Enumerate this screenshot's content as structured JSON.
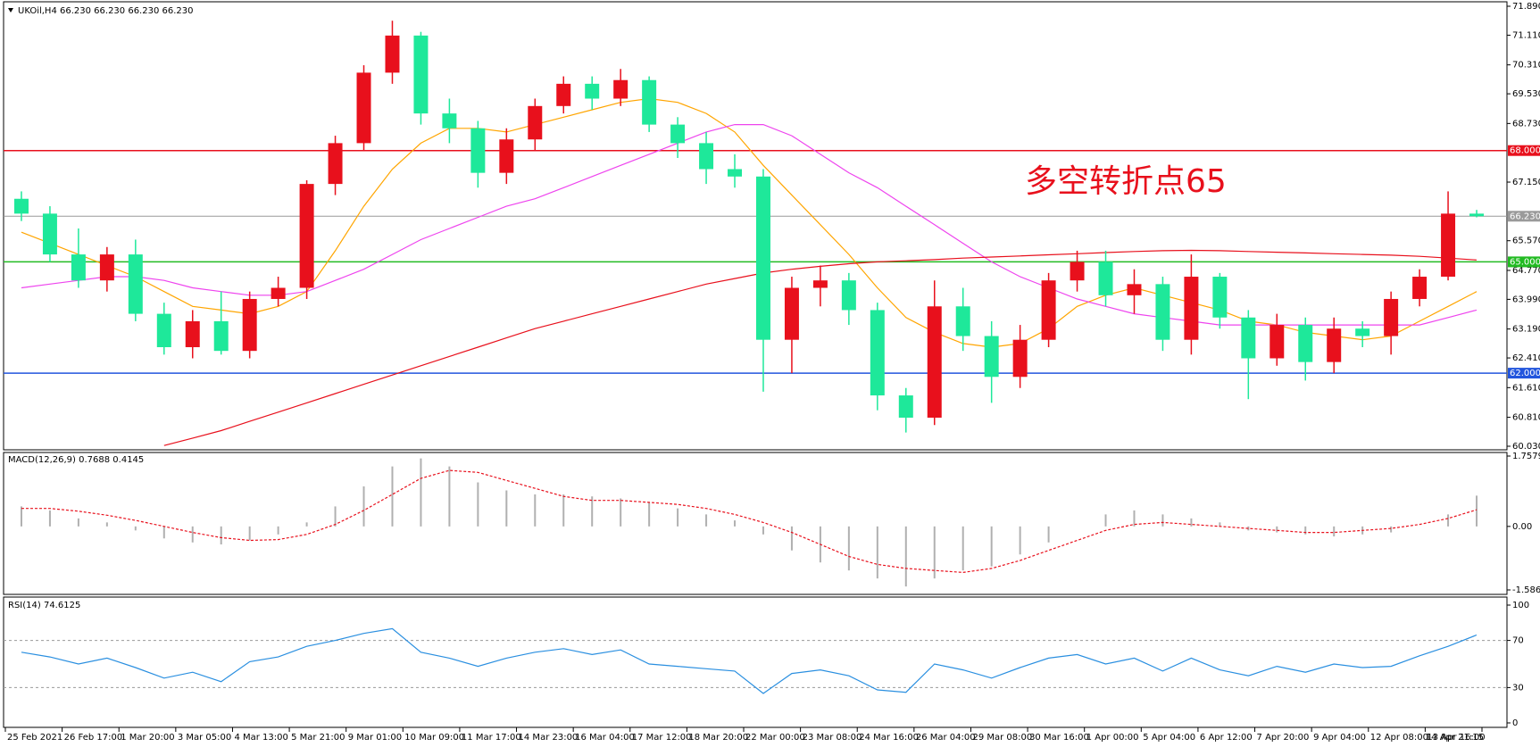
{
  "chart_data": [
    {
      "type": "candlestick",
      "title": "UKOil,H4  66.230 66.230 66.230 66.230",
      "annotation": "多空转折点65",
      "up_color": "#e8101c",
      "down_color": "#1ee89a",
      "open": [
        66.7,
        66.3,
        65.2,
        64.5,
        65.2,
        63.6,
        62.7,
        63.4,
        62.6,
        64.0,
        64.3,
        67.1,
        68.2,
        70.1,
        71.1,
        69.0,
        68.6,
        67.4,
        68.3,
        69.2,
        69.8,
        69.4,
        69.9,
        68.7,
        68.2,
        67.5,
        67.3,
        62.9,
        64.3,
        64.5,
        63.7,
        61.4,
        60.8,
        63.8,
        63.0,
        61.9,
        62.9,
        64.5,
        65.0,
        64.1,
        64.4,
        62.9,
        64.6,
        63.5,
        62.4,
        63.3,
        62.3,
        63.2,
        63.0,
        64.0,
        64.6,
        66.3
      ],
      "high": [
        66.9,
        66.5,
        65.9,
        65.4,
        65.6,
        63.9,
        63.7,
        64.2,
        64.2,
        64.6,
        67.2,
        68.4,
        70.3,
        71.5,
        71.2,
        69.4,
        68.8,
        68.6,
        69.4,
        70.0,
        70.0,
        70.2,
        70.0,
        68.9,
        68.5,
        67.9,
        67.5,
        64.6,
        64.9,
        64.7,
        63.9,
        61.6,
        64.5,
        64.3,
        63.4,
        63.3,
        64.7,
        65.3,
        65.3,
        64.8,
        64.6,
        65.2,
        64.7,
        63.7,
        63.6,
        63.5,
        63.5,
        63.4,
        64.2,
        64.8,
        66.9,
        66.4
      ],
      "low": [
        66.1,
        65.0,
        64.3,
        64.2,
        63.4,
        62.5,
        62.4,
        62.5,
        62.4,
        63.8,
        64.0,
        66.8,
        68.0,
        69.8,
        68.7,
        68.2,
        67.0,
        67.1,
        68.0,
        69.0,
        69.1,
        69.2,
        68.5,
        67.8,
        67.1,
        67.0,
        61.5,
        62.0,
        63.8,
        63.3,
        61.0,
        60.4,
        60.6,
        62.6,
        61.2,
        61.6,
        62.7,
        64.2,
        63.8,
        63.6,
        62.6,
        62.5,
        63.2,
        61.3,
        62.2,
        61.8,
        62.0,
        62.7,
        62.5,
        63.8,
        64.5,
        66.2
      ],
      "close": [
        66.3,
        65.2,
        64.5,
        65.2,
        63.6,
        62.7,
        63.4,
        62.6,
        64.0,
        64.3,
        67.1,
        68.2,
        70.1,
        71.1,
        69.0,
        68.6,
        67.4,
        68.3,
        69.2,
        69.8,
        69.4,
        69.9,
        68.7,
        68.2,
        67.5,
        67.3,
        62.9,
        64.3,
        64.5,
        63.7,
        61.4,
        60.8,
        63.8,
        63.0,
        61.9,
        62.9,
        64.5,
        65.0,
        64.1,
        64.4,
        62.9,
        64.6,
        63.5,
        62.4,
        63.3,
        62.3,
        63.2,
        63.0,
        64.0,
        64.6,
        66.3,
        66.23
      ],
      "lines": [
        {
          "color": "#ffa500",
          "values": [
            65.8,
            65.5,
            65.2,
            64.9,
            64.6,
            64.2,
            63.8,
            63.7,
            63.6,
            63.8,
            64.2,
            65.3,
            66.5,
            67.5,
            68.2,
            68.6,
            68.6,
            68.5,
            68.7,
            68.9,
            69.1,
            69.3,
            69.4,
            69.3,
            69.0,
            68.5,
            67.6,
            66.8,
            66.0,
            65.2,
            64.3,
            63.5,
            63.1,
            62.8,
            62.7,
            62.8,
            63.2,
            63.8,
            64.1,
            64.3,
            64.1,
            63.9,
            63.7,
            63.4,
            63.3,
            63.1,
            63.0,
            62.9,
            63.0,
            63.4,
            63.8,
            64.2
          ]
        },
        {
          "color": "#ee44ee",
          "values": [
            64.3,
            64.4,
            64.5,
            64.6,
            64.6,
            64.5,
            64.3,
            64.2,
            64.1,
            64.1,
            64.2,
            64.5,
            64.8,
            65.2,
            65.6,
            65.9,
            66.2,
            66.5,
            66.7,
            67.0,
            67.3,
            67.6,
            67.9,
            68.2,
            68.5,
            68.7,
            68.7,
            68.4,
            67.9,
            67.4,
            67.0,
            66.5,
            66.0,
            65.5,
            65.0,
            64.6,
            64.3,
            64.0,
            63.8,
            63.6,
            63.5,
            63.4,
            63.3,
            63.3,
            63.3,
            63.3,
            63.3,
            63.3,
            63.3,
            63.3,
            63.5,
            63.7
          ]
        },
        {
          "color": "#e8101c",
          "values": [
            null,
            null,
            null,
            null,
            null,
            60.05,
            60.25,
            60.45,
            60.7,
            60.95,
            61.2,
            61.45,
            61.7,
            61.95,
            62.2,
            62.45,
            62.7,
            62.95,
            63.2,
            63.4,
            63.6,
            63.8,
            64.0,
            64.2,
            64.4,
            64.55,
            64.7,
            64.8,
            64.88,
            64.95,
            65.0,
            65.03,
            65.06,
            65.1,
            65.13,
            65.16,
            65.19,
            65.22,
            65.25,
            65.28,
            65.3,
            65.31,
            65.3,
            65.28,
            65.26,
            65.24,
            65.22,
            65.2,
            65.18,
            65.15,
            65.1,
            65.05
          ]
        }
      ],
      "levels": [
        {
          "value": 68,
          "label": "68.000",
          "color": "#e8101c"
        },
        {
          "value": 66.23,
          "label": "66.230",
          "color": "#9a9a9a"
        },
        {
          "value": 65,
          "label": "65.000",
          "color": "#22bb22"
        },
        {
          "value": 62,
          "label": "62.000",
          "color": "#2255dd"
        }
      ],
      "ylim": [
        60.03,
        71.89
      ],
      "yticks": [
        {
          "value": 71.89,
          "label": "71.890"
        },
        {
          "value": 71.11,
          "label": "71.110"
        },
        {
          "value": 70.31,
          "label": "70.310"
        },
        {
          "value": 69.53,
          "label": "69.530"
        },
        {
          "value": 68.73,
          "label": "68.730"
        },
        {
          "value": 67.15,
          "label": "67.150"
        },
        {
          "value": 65.57,
          "label": "65.570"
        },
        {
          "value": 64.77,
          "label": "64.770"
        },
        {
          "value": 63.99,
          "label": "63.990"
        },
        {
          "value": 63.19,
          "label": "63.190"
        },
        {
          "value": 62.41,
          "label": "62.410"
        },
        {
          "value": 61.61,
          "label": "61.610"
        },
        {
          "value": 60.81,
          "label": "60.810"
        },
        {
          "value": 60.03,
          "label": "60.030"
        }
      ],
      "x_labels": [
        "25 Feb 2021",
        "26 Feb 17:00",
        "1 Mar 20:00",
        "3 Mar 05:00",
        "4 Mar 13:00",
        "5 Mar 21:00",
        "9 Mar 01:00",
        "10 Mar 09:00",
        "11 Mar 17:00",
        "14 Mar 23:00",
        "16 Mar 04:00",
        "17 Mar 12:00",
        "18 Mar 20:00",
        "22 Mar 00:00",
        "23 Mar 08:00",
        "24 Mar 16:00",
        "26 Mar 04:00",
        "29 Mar 08:00",
        "30 Mar 16:00",
        "1 Apr 00:00",
        "5 Apr 04:00",
        "6 Apr 12:00",
        "7 Apr 20:00",
        "9 Apr 04:00",
        "12 Apr 08:00",
        "13 Apr 16:00",
        "14 Apr 21:15"
      ]
    },
    {
      "type": "macd",
      "title": "MACD(12,26,9) 0.7688 0.4145",
      "color": "#b0b0b0",
      "signal_color": "#e8101c",
      "histogram": [
        0.5,
        0.4,
        0.2,
        0.1,
        -0.1,
        -0.3,
        -0.4,
        -0.45,
        -0.35,
        -0.2,
        0.1,
        0.5,
        1.0,
        1.5,
        1.7,
        1.5,
        1.1,
        0.9,
        0.8,
        0.8,
        0.75,
        0.7,
        0.6,
        0.45,
        0.3,
        0.15,
        -0.2,
        -0.6,
        -0.9,
        -1.1,
        -1.3,
        -1.5,
        -1.3,
        -1.1,
        -1.0,
        -0.7,
        -0.4,
        0.0,
        0.3,
        0.4,
        0.3,
        0.2,
        0.1,
        -0.1,
        -0.15,
        -0.2,
        -0.25,
        -0.2,
        -0.15,
        0.0,
        0.3,
        0.7688
      ],
      "signal": [
        0.45,
        0.45,
        0.38,
        0.28,
        0.15,
        0.0,
        -0.15,
        -0.28,
        -0.35,
        -0.33,
        -0.2,
        0.05,
        0.4,
        0.8,
        1.2,
        1.4,
        1.35,
        1.15,
        0.95,
        0.75,
        0.65,
        0.65,
        0.6,
        0.55,
        0.45,
        0.3,
        0.1,
        -0.15,
        -0.45,
        -0.75,
        -0.95,
        -1.05,
        -1.1,
        -1.15,
        -1.05,
        -0.85,
        -0.6,
        -0.35,
        -0.1,
        0.05,
        0.1,
        0.05,
        0.0,
        -0.05,
        -0.1,
        -0.15,
        -0.15,
        -0.1,
        -0.05,
        0.05,
        0.2,
        0.4145
      ],
      "ylim": [
        -1.5867,
        1.7579
      ],
      "yticks": [
        1.7579,
        {
          "value": 0,
          "label": "0.00"
        },
        -1.5867
      ]
    },
    {
      "type": "rsi",
      "title": "RSI(14) 74.6125",
      "color": "#2a8fe0",
      "values": [
        60,
        56,
        50,
        55,
        47,
        38,
        43,
        35,
        52,
        56,
        65,
        70,
        76,
        80,
        60,
        55,
        48,
        55,
        60,
        63,
        58,
        62,
        50,
        48,
        46,
        44,
        25,
        42,
        45,
        40,
        28,
        26,
        50,
        45,
        38,
        47,
        55,
        58,
        50,
        55,
        44,
        55,
        45,
        40,
        48,
        43,
        50,
        47,
        48,
        57,
        65,
        74.6125
      ],
      "ylim": [
        0,
        100
      ],
      "yticks": [
        100,
        70,
        30,
        0
      ],
      "levels": [
        70,
        30
      ]
    }
  ]
}
